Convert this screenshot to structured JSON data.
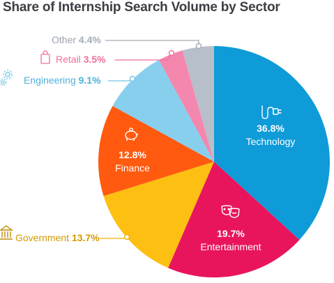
{
  "chart_data": {
    "type": "pie",
    "title": "Share of Internship Search Volume by Sector",
    "slices": [
      {
        "label": "Technology",
        "value": 36.8,
        "display": "36.8%",
        "color": "#0e9bd8",
        "icon": "plug-icon",
        "placement": "inside"
      },
      {
        "label": "Entertainment",
        "value": 19.7,
        "display": "19.7%",
        "color": "#e8155d",
        "icon": "theater-masks-icon",
        "placement": "inside"
      },
      {
        "label": "Government",
        "value": 13.7,
        "display": "13.7%",
        "color": "#fdbf12",
        "icon": "government-building-icon",
        "placement": "outside"
      },
      {
        "label": "Finance",
        "value": 12.8,
        "display": "12.8%",
        "color": "#ff5a10",
        "icon": "piggy-bank-icon",
        "placement": "inside"
      },
      {
        "label": "Engineering",
        "value": 9.1,
        "display": "9.1%",
        "color": "#87cfed",
        "icon": "gears-icon",
        "placement": "outside"
      },
      {
        "label": "Retail",
        "value": 3.5,
        "display": "3.5%",
        "color": "#f487ae",
        "icon": "shopping-bag-icon",
        "placement": "outside"
      },
      {
        "label": "Other",
        "value": 4.4,
        "display": "4.4%",
        "color": "#b7bfcb",
        "icon": "",
        "placement": "outside"
      }
    ]
  }
}
